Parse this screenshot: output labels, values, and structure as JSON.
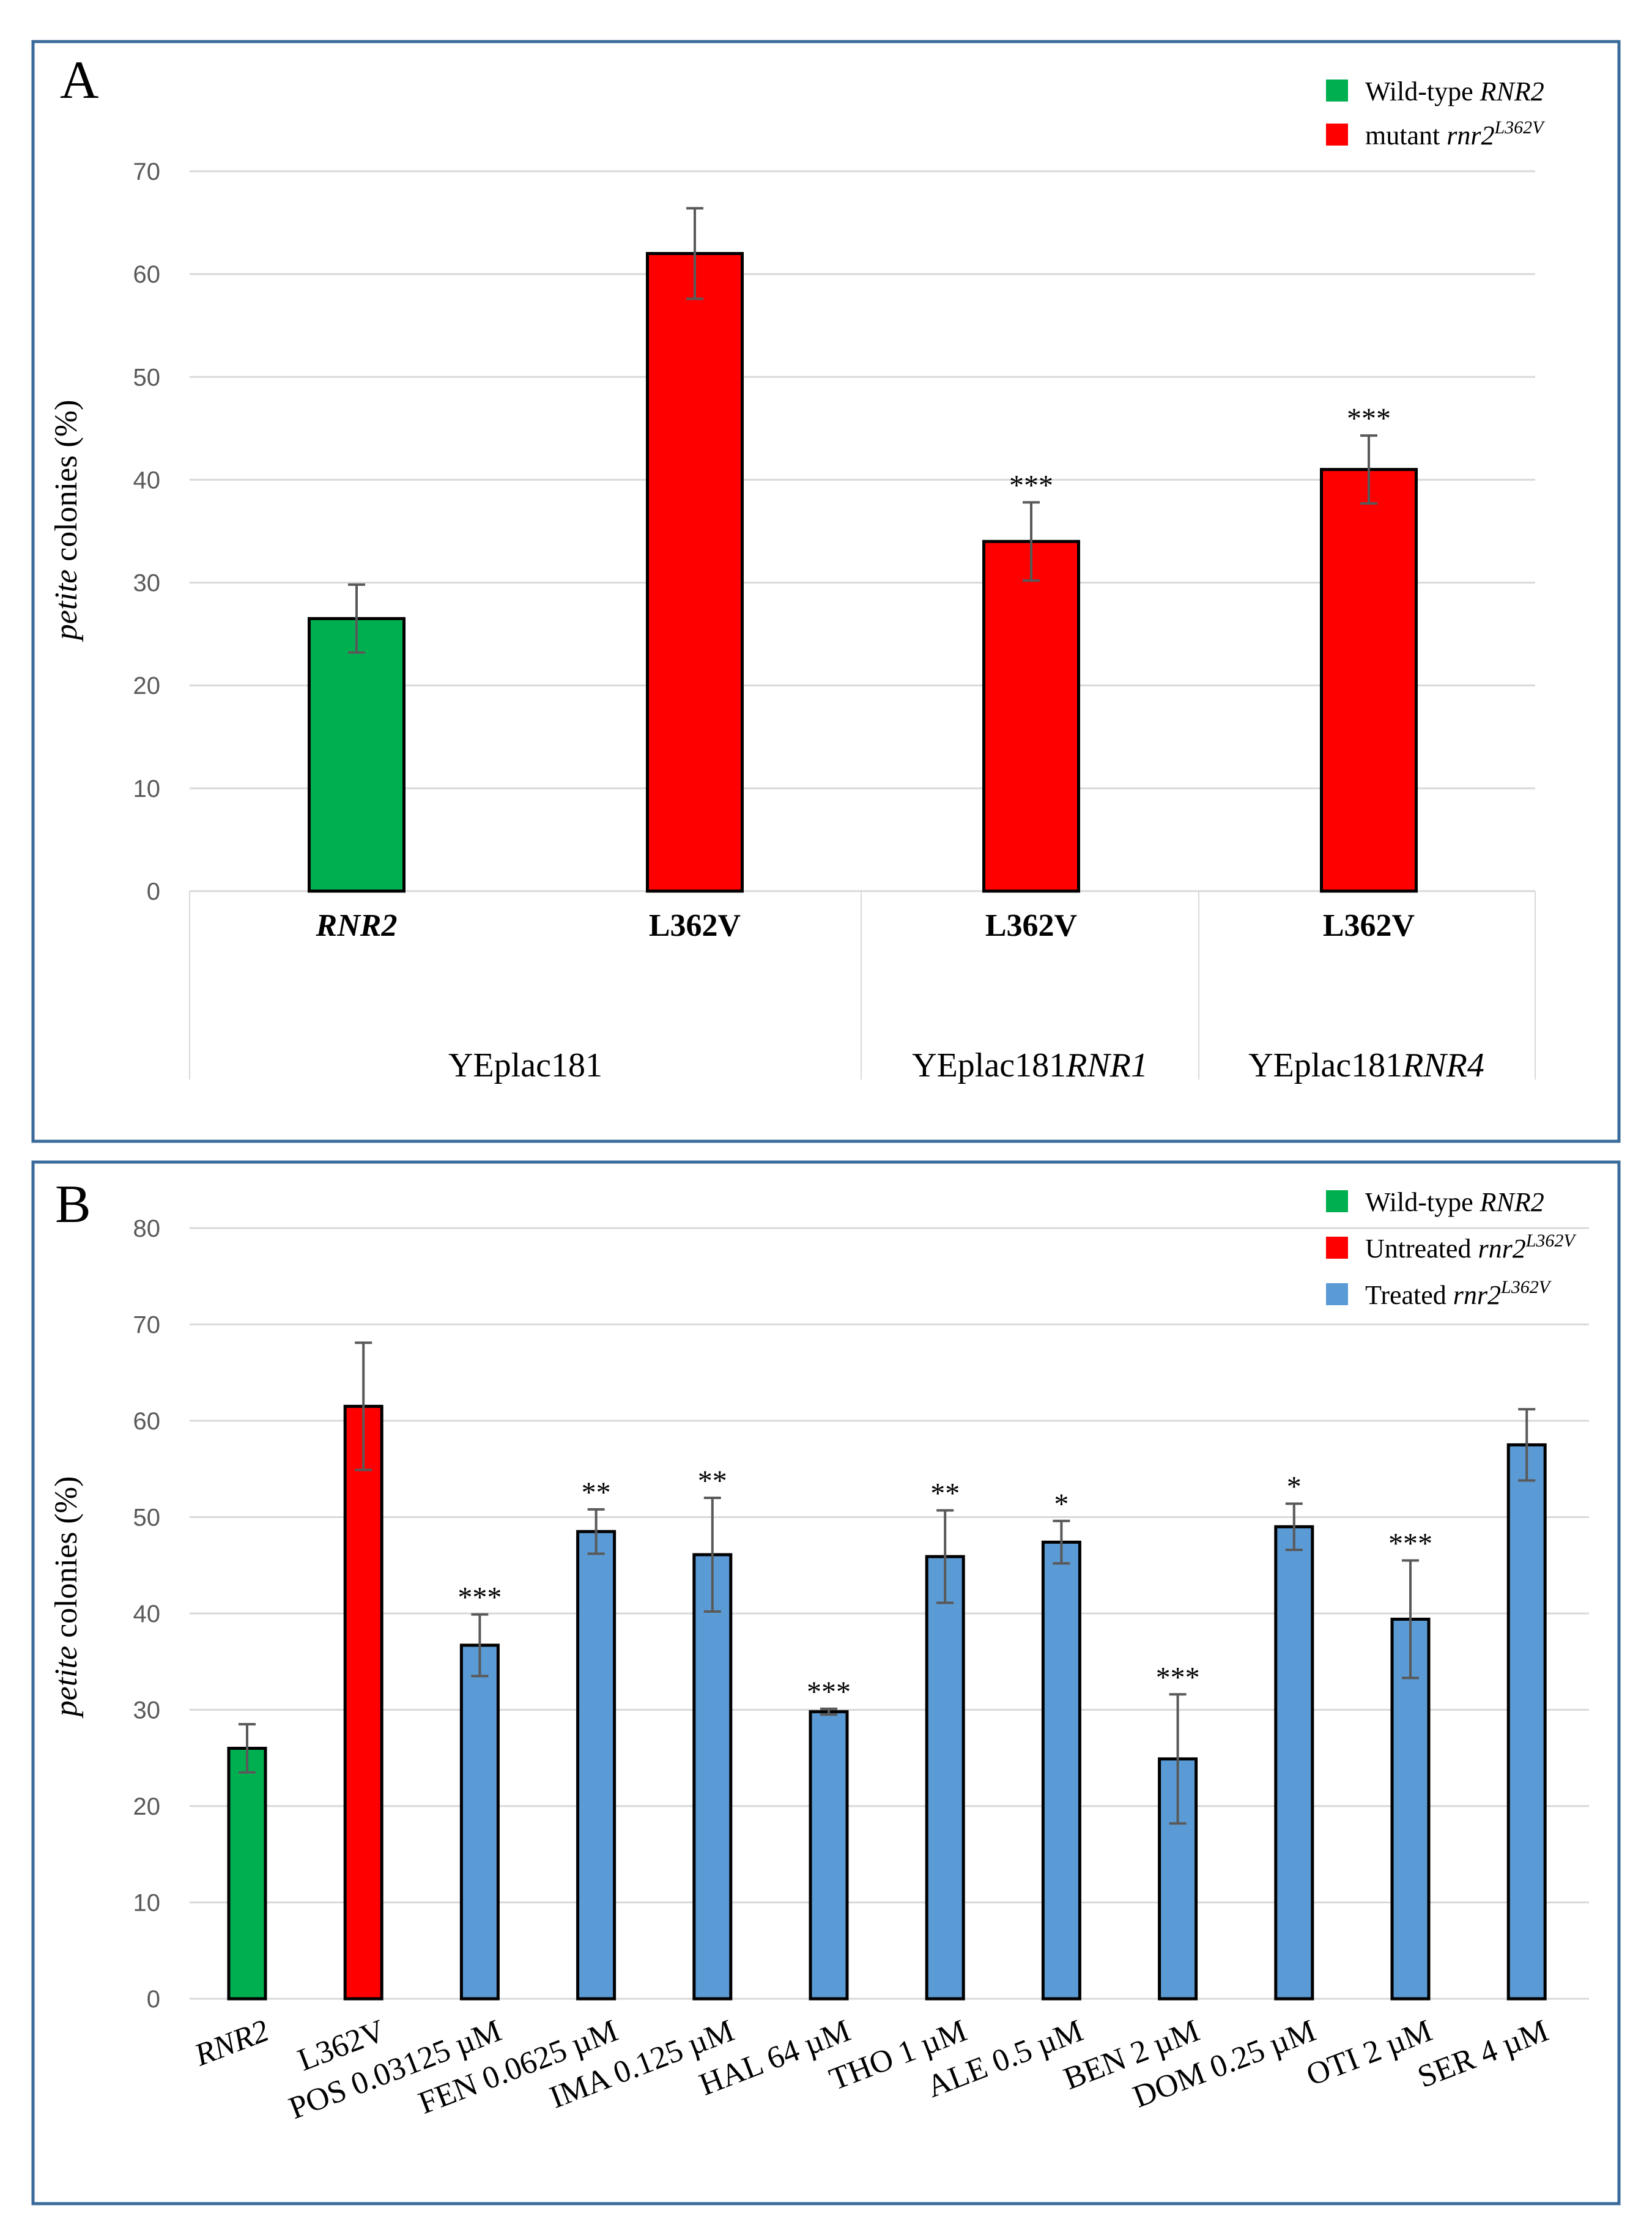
{
  "colors": {
    "wild_type": "#00b050",
    "mutant": "#ff0000",
    "treated": "#5b9bd5",
    "border": "#3a6b9a"
  },
  "chart_data": [
    {
      "panel": "A",
      "type": "bar",
      "ylabel_italic": "petite",
      "ylabel_rest": " colonies (%)",
      "ylim": [
        0,
        70
      ],
      "yticks": [
        0,
        10,
        20,
        30,
        40,
        50,
        60,
        70
      ],
      "grid": true,
      "legend": [
        {
          "text": "Wild-type ",
          "italic": "RNR2",
          "sup": "",
          "color_key": "wild_type"
        },
        {
          "text": "mutant ",
          "italic": "rnr2",
          "sup": "L362V",
          "color_key": "mutant"
        }
      ],
      "bars": [
        {
          "label": "RNR2",
          "italic": true,
          "value": 26.5,
          "error": 3.3,
          "sig": "",
          "color_key": "wild_type"
        },
        {
          "label": "L362V",
          "italic": false,
          "value": 62.0,
          "error": 4.4,
          "sig": "",
          "color_key": "mutant"
        },
        {
          "label": "L362V",
          "italic": false,
          "value": 34.0,
          "error": 3.8,
          "sig": "***",
          "color_key": "mutant"
        },
        {
          "label": "L362V",
          "italic": false,
          "value": 41.0,
          "error": 3.3,
          "sig": "***",
          "color_key": "mutant"
        }
      ],
      "groups": [
        {
          "text": "YEplac181",
          "italic": "",
          "bars": [
            0,
            1
          ]
        },
        {
          "text": "YEplac181",
          "italic": "RNR1",
          "bars": [
            2
          ]
        },
        {
          "text": "YEplac181",
          "italic": "RNR4",
          "bars": [
            3
          ]
        }
      ]
    },
    {
      "panel": "B",
      "type": "bar",
      "ylabel_italic": "petite",
      "ylabel_rest": " colonies (%)",
      "ylim": [
        0,
        80
      ],
      "yticks": [
        0,
        10,
        20,
        30,
        40,
        50,
        60,
        70,
        80
      ],
      "grid": true,
      "legend": [
        {
          "text": "Wild-type ",
          "italic": "RNR2",
          "sup": "",
          "color_key": "wild_type"
        },
        {
          "text": "Untreated ",
          "italic": "rnr2",
          "sup": "L362V",
          "color_key": "mutant"
        },
        {
          "text": "Treated ",
          "italic": "rnr2",
          "sup": "L362V",
          "color_key": "treated"
        }
      ],
      "bars": [
        {
          "label": "RNR2",
          "value": 26.0,
          "error": 2.5,
          "sig": "",
          "color_key": "wild_type"
        },
        {
          "label": "L362V",
          "value": 61.5,
          "error": 6.6,
          "sig": "",
          "color_key": "mutant"
        },
        {
          "label": "POS 0.03125 µM",
          "value": 36.7,
          "error": 3.2,
          "sig": "***",
          "color_key": "treated"
        },
        {
          "label": "FEN 0.0625 µM",
          "value": 48.5,
          "error": 2.3,
          "sig": "**",
          "color_key": "treated"
        },
        {
          "label": "IMA 0.125 µM",
          "value": 46.1,
          "error": 5.9,
          "sig": "**",
          "color_key": "treated"
        },
        {
          "label": "HAL 64 µM",
          "value": 29.8,
          "error": 0.3,
          "sig": "***",
          "color_key": "treated"
        },
        {
          "label": "THO 1 µM",
          "value": 45.9,
          "error": 4.8,
          "sig": "**",
          "color_key": "treated"
        },
        {
          "label": "ALE 0.5 µM",
          "value": 47.4,
          "error": 2.2,
          "sig": "*",
          "color_key": "treated"
        },
        {
          "label": "BEN 2 µM",
          "value": 24.9,
          "error": 6.7,
          "sig": "***",
          "color_key": "treated"
        },
        {
          "label": "DOM 0.25 µM",
          "value": 49.0,
          "error": 2.4,
          "sig": "*",
          "color_key": "treated"
        },
        {
          "label": "OTI 2 µM",
          "value": 39.4,
          "error": 6.1,
          "sig": "***",
          "color_key": "treated"
        },
        {
          "label": "SER 4 µM",
          "value": 57.5,
          "error": 3.7,
          "sig": "",
          "color_key": "treated"
        }
      ]
    }
  ]
}
